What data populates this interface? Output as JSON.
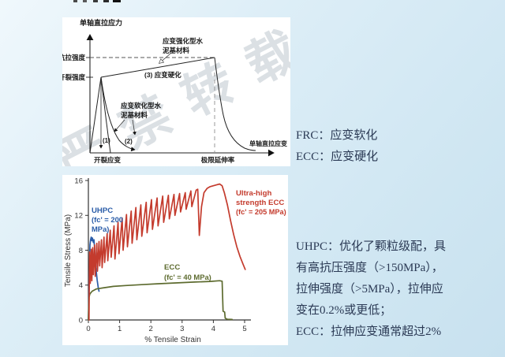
{
  "watermark": "严禁转载",
  "colors": {
    "background": "#d9ecf6",
    "panel": "#ffffff",
    "note_text": "#2b3a55",
    "uhpc_blue": "#2a5ca8",
    "ecc_green": "#5d6b2f",
    "uhs_ecc_red": "#c43b2d",
    "axis": "#333333"
  },
  "notes": {
    "frc": "FRC：应变软化",
    "ecc": "ECC：应变硬化",
    "uhpc_para_lines": [
      "UHPC：优化了颗粒级配，具",
      "有高抗压强度（>150MPa），",
      "拉伸强度（>5MPa），拉伸应",
      "变在0.2%或更低；",
      "ECC：拉伸应变通常超过2%"
    ]
  },
  "chart_data": [
    {
      "type": "line",
      "qualitative": true,
      "ylabel": "单轴直拉应力",
      "xlabel": "单轴直拉应变",
      "tensile_strength_label": "抗拉强度",
      "cracking_strength_label": "开裂强度",
      "cracking_strain_label": "开裂应变",
      "ultimate_elongation_label": "极限延伸率",
      "hardening_material_lines": [
        "应变强化型水",
        "泥基材料"
      ],
      "softening_material_lines": [
        "应变软化型水",
        "泥基材料"
      ],
      "hardening_tag": "(3) 应变硬化",
      "softening_curve_1": "(1)",
      "softening_curve_2": "(2)"
    },
    {
      "type": "line",
      "xlabel": "% Tensile Strain",
      "ylabel": "Tensile Stress (MPa)",
      "xlim": [
        0,
        5.2
      ],
      "ylim": [
        0,
        16
      ],
      "xticks": [
        0,
        1,
        2,
        3,
        4,
        5
      ],
      "yticks": [
        0,
        4,
        8,
        12,
        16
      ],
      "series": [
        {
          "name": "UHPC",
          "color": "#2a5ca8",
          "label_lines": [
            "UHPC",
            "(fc' = 200",
            "MPa)"
          ],
          "points": [
            [
              0,
              0
            ],
            [
              0.02,
              3.0
            ],
            [
              0.03,
              5.5
            ],
            [
              0.05,
              8.6
            ],
            [
              0.07,
              9.2
            ],
            [
              0.09,
              9.5
            ],
            [
              0.11,
              9.1
            ],
            [
              0.13,
              9.4
            ],
            [
              0.16,
              8.9
            ],
            [
              0.18,
              9.2
            ],
            [
              0.2,
              8.2
            ],
            [
              0.24,
              6.0
            ],
            [
              0.28,
              4.6
            ],
            [
              0.32,
              3.6
            ],
            [
              0.34,
              3.3
            ]
          ]
        },
        {
          "name": "ECC",
          "color": "#5d6b2f",
          "label_lines": [
            "ECC",
            "(fc' = 40 MPa)"
          ],
          "points": [
            [
              0,
              0
            ],
            [
              0.02,
              2.6
            ],
            [
              0.05,
              3.0
            ],
            [
              0.12,
              3.3
            ],
            [
              0.25,
              3.55
            ],
            [
              0.5,
              3.7
            ],
            [
              0.8,
              3.85
            ],
            [
              1.2,
              3.95
            ],
            [
              1.7,
              4.05
            ],
            [
              2.2,
              4.15
            ],
            [
              2.8,
              4.25
            ],
            [
              3.4,
              4.35
            ],
            [
              3.9,
              4.42
            ],
            [
              4.2,
              4.5
            ],
            [
              4.28,
              4.45
            ],
            [
              4.31,
              1.0
            ],
            [
              4.36,
              0.9
            ],
            [
              4.38,
              0.2
            ],
            [
              4.45,
              0.08
            ],
            [
              4.6,
              0.05
            ]
          ]
        },
        {
          "name": "Ultra-high strength ECC",
          "color": "#c43b2d",
          "label_lines": [
            "Ultra-high",
            "strength ECC",
            "(fc' = 205 MPa)"
          ],
          "points": [
            [
              0.02,
              0
            ],
            [
              0.03,
              4.5
            ],
            [
              0.04,
              7.8
            ],
            [
              0.06,
              4.2
            ],
            [
              0.09,
              8.1
            ],
            [
              0.11,
              4.5
            ],
            [
              0.14,
              8.3
            ],
            [
              0.16,
              5.2
            ],
            [
              0.2,
              8.6
            ],
            [
              0.22,
              5.0
            ],
            [
              0.27,
              8.8
            ],
            [
              0.29,
              5.6
            ],
            [
              0.34,
              9.0
            ],
            [
              0.36,
              6.2
            ],
            [
              0.42,
              9.2
            ],
            [
              0.44,
              6.0
            ],
            [
              0.5,
              9.5
            ],
            [
              0.52,
              6.6
            ],
            [
              0.6,
              9.9
            ],
            [
              0.62,
              6.8
            ],
            [
              0.7,
              10.3
            ],
            [
              0.73,
              7.2
            ],
            [
              0.82,
              10.8
            ],
            [
              0.85,
              7.0
            ],
            [
              0.95,
              11.2
            ],
            [
              0.98,
              7.6
            ],
            [
              1.08,
              11.7
            ],
            [
              1.11,
              8.0
            ],
            [
              1.22,
              12.1
            ],
            [
              1.25,
              8.4
            ],
            [
              1.37,
              12.5
            ],
            [
              1.4,
              8.8
            ],
            [
              1.52,
              12.9
            ],
            [
              1.55,
              9.2
            ],
            [
              1.68,
              13.2
            ],
            [
              1.71,
              9.6
            ],
            [
              1.85,
              13.5
            ],
            [
              1.88,
              10.0
            ],
            [
              2.02,
              13.8
            ],
            [
              2.05,
              10.4
            ],
            [
              2.2,
              14.0
            ],
            [
              2.23,
              10.8
            ],
            [
              2.38,
              14.2
            ],
            [
              2.41,
              11.2
            ],
            [
              2.56,
              14.3
            ],
            [
              2.59,
              11.6
            ],
            [
              2.74,
              14.4
            ],
            [
              2.77,
              12.0
            ],
            [
              2.92,
              14.5
            ],
            [
              2.95,
              12.4
            ],
            [
              3.1,
              14.6
            ],
            [
              3.13,
              12.7
            ],
            [
              3.28,
              14.8
            ],
            [
              3.31,
              13.0
            ],
            [
              3.45,
              14.9
            ],
            [
              3.5,
              15.0
            ],
            [
              3.55,
              9.7
            ],
            [
              3.62,
              13.0
            ],
            [
              3.7,
              14.6
            ],
            [
              3.8,
              15.1
            ],
            [
              3.9,
              15.3
            ],
            [
              4.0,
              15.4
            ],
            [
              4.1,
              15.5
            ],
            [
              4.2,
              15.6
            ],
            [
              4.28,
              15.4
            ],
            [
              4.35,
              14.6
            ],
            [
              4.45,
              13.2
            ],
            [
              4.55,
              11.4
            ],
            [
              4.65,
              9.8
            ],
            [
              4.75,
              8.4
            ],
            [
              4.85,
              7.3
            ],
            [
              4.95,
              6.4
            ],
            [
              5.02,
              5.8
            ]
          ]
        }
      ]
    }
  ]
}
